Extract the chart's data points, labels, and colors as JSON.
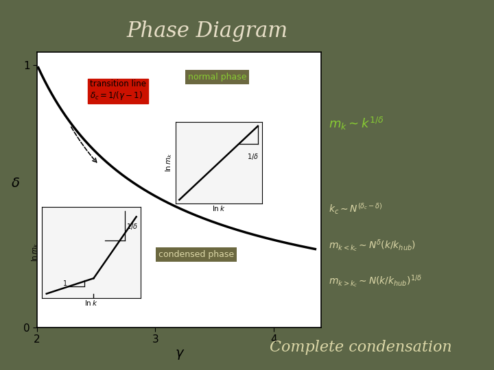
{
  "title": "Phase Diagram",
  "title_color": "#e8dfc8",
  "title_fontsize": 22,
  "bg_color": "#5c6647",
  "plot_bg": "#ffffff",
  "curve_color": "#000000",
  "curve_linewidth": 2.5,
  "xlim": [
    2,
    4.4
  ],
  "ylim": [
    0,
    1.05
  ],
  "xticks": [
    2,
    3,
    4
  ],
  "yticks": [
    0,
    1
  ],
  "xlabel": "γ",
  "ylabel": "δ",
  "transition_box_color": "#cc1100",
  "normal_phase_box_color": "#6b6840",
  "normal_phase_text": "normal phase",
  "normal_phase_text_color": "#88cc33",
  "condensed_phase_box_color": "#6b6840",
  "condensed_phase_text": "condensed phase",
  "condensed_phase_text_color": "#ddd8a8",
  "eq1_color": "#88cc33",
  "eq1": "$m_k \\sim k^{1/\\delta}$",
  "eq2_color": "#ddd8a8",
  "eq2": "$k_c \\sim N^{(\\delta_c-\\delta)}$",
  "eq3": "$m_{k<k_c} \\sim N^{\\delta}(k/k_{hub})$",
  "eq4": "$m_{k>k_c} \\sim N(k/k_{hub})^{1/\\delta}$",
  "complete_text": "Complete condensation",
  "complete_color": "#ddd8a8",
  "complete_fontsize": 16
}
